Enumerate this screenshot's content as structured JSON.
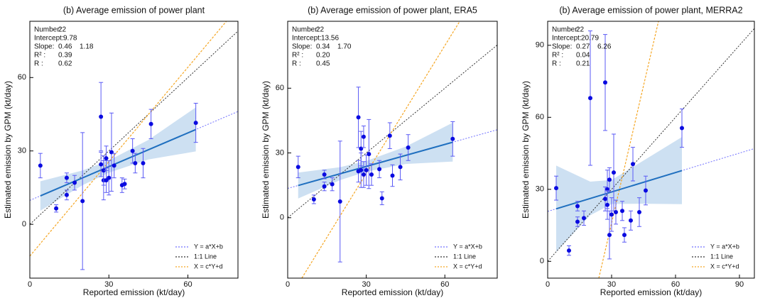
{
  "chart_data": [
    {
      "type": "scatter",
      "title": "(b) Average emission of power plant",
      "xlabel": "Reported emission (kt/day)",
      "ylabel": "Estimated emission by GPM (kt/day)",
      "xlim": [
        0,
        79
      ],
      "ylim": [
        -22,
        83
      ],
      "xticks": [
        0,
        30,
        60
      ],
      "yticks": [
        0,
        30,
        60
      ],
      "point_color": "#0a0ae0",
      "x": [
        4,
        10,
        14,
        14,
        17,
        20,
        27,
        27,
        28,
        28,
        29,
        29,
        30,
        31,
        32,
        35,
        36,
        39,
        40,
        43,
        46,
        63
      ],
      "values": [
        24,
        6.5,
        12,
        19,
        17,
        9.5,
        24.5,
        44,
        18,
        22,
        18,
        27,
        19,
        29.5,
        24,
        16,
        16.5,
        30,
        25,
        25,
        41,
        41.5
      ],
      "errors": [
        5,
        1.5,
        2,
        2,
        3,
        28,
        5,
        14,
        8,
        6,
        5,
        5,
        7,
        16,
        5,
        3,
        2,
        5,
        4,
        6,
        6,
        8
      ],
      "band_x": [
        4,
        20,
        30,
        45,
        63
      ],
      "band_lower": [
        5.6,
        16,
        21.1,
        26.5,
        29.8
      ],
      "band_upper": [
        17.6,
        22,
        26.1,
        34.5,
        47.8
      ],
      "stats": [
        {
          "label": "Number:",
          "value": 22
        },
        {
          "label": "Intercept:",
          "value": 9.78
        },
        {
          "label": "Slope:",
          "value": 0.46,
          "value2": 1.18
        },
        {
          "label": "R² :",
          "value": 0.39
        },
        {
          "label": "R :",
          "value": 0.62
        }
      ],
      "lines": [
        {
          "name": "Y = a*X+b",
          "color": "#7070ff"
        },
        {
          "name": "1:1 Line",
          "color": "#333333"
        },
        {
          "name": "X = c*Y+d",
          "color": "#f5a623",
          "x": [
            0,
            74.6
          ],
          "y": [
            -13,
            83
          ]
        }
      ]
    },
    {
      "type": "scatter",
      "title": "(b) Average emission of power plant, ERA5",
      "xlabel": "Reported emission (kt/day)",
      "ylabel": "Estimated emission by GPM (kt/day)",
      "xlim": [
        0,
        80
      ],
      "ylim": [
        -28,
        91
      ],
      "xticks": [
        0,
        30,
        60
      ],
      "yticks": [
        0,
        30,
        60
      ],
      "point_color": "#0a0ae0",
      "x": [
        4,
        10,
        14,
        14,
        17,
        20,
        27,
        27,
        28,
        28,
        29,
        29,
        30,
        31,
        32,
        35,
        36,
        39,
        40,
        43,
        46,
        63
      ],
      "values": [
        23.5,
        8.5,
        14.5,
        20,
        15.5,
        7.5,
        21.5,
        46.5,
        22,
        32,
        20,
        37.5,
        22,
        29.5,
        20,
        22.5,
        9,
        38,
        19.5,
        23.5,
        32.5,
        36.5
      ],
      "errors": [
        5,
        2,
        2,
        2,
        3,
        28,
        5,
        14,
        8,
        8,
        6,
        5,
        7,
        16,
        5,
        4,
        3,
        6,
        5,
        6,
        6,
        8
      ],
      "band_x": [
        4,
        20,
        30,
        45,
        63
      ],
      "band_lower": [
        8.9,
        17.4,
        21.3,
        24.9,
        26
      ],
      "band_upper": [
        20.9,
        23.4,
        26.3,
        32.9,
        44
      ],
      "stats": [
        {
          "label": "Number:",
          "value": 22
        },
        {
          "label": "Intercept:",
          "value": 13.56
        },
        {
          "label": "Slope:",
          "value": 0.34,
          "value2": {
            "value": 1.7,
            "label": "1.70"
          }
        },
        {
          "label": "R² :",
          "value": {
            "value": 0.2,
            "label": "0.20"
          }
        },
        {
          "label": "R :",
          "value": 0.45
        }
      ],
      "lines": [
        {
          "name": "Y = a*X+b",
          "color": "#7070ff"
        },
        {
          "name": "1:1 Line",
          "color": "#333333"
        },
        {
          "name": "X = c*Y+d",
          "color": "#f5a623",
          "x": [
            5.4,
            65.7
          ],
          "y": [
            -28,
            91
          ]
        }
      ]
    },
    {
      "type": "scatter",
      "title": "(b) Average emission of power plant, MERRA2",
      "xlabel": "Reported emission (kt/day)",
      "ylabel": "Estimated emission by GPM (kt/day)",
      "xlim": [
        0,
        97
      ],
      "ylim": [
        -7,
        100
      ],
      "xticks": [
        0,
        30,
        60,
        90
      ],
      "yticks": [
        0,
        30,
        60,
        90
      ],
      "point_color": "#0a0ae0",
      "x": [
        4,
        10,
        14,
        14,
        17,
        20,
        27,
        27,
        28,
        28,
        29,
        29,
        30,
        31,
        32,
        35,
        36,
        39,
        40,
        43,
        46,
        63
      ],
      "values": [
        30.5,
        4.5,
        16.5,
        23,
        18,
        68,
        26,
        74.5,
        30,
        23.5,
        11,
        34,
        19.5,
        37,
        20.5,
        21,
        11,
        17,
        40.5,
        20.5,
        29.5,
        55.5
      ],
      "errors": [
        5,
        2,
        2,
        2,
        3,
        28,
        5,
        20,
        8,
        6,
        10,
        5,
        7,
        16,
        5,
        4,
        3,
        4,
        7,
        6,
        6,
        8
      ],
      "band_x": [
        4,
        20,
        30,
        45,
        63
      ],
      "band_lower": [
        3.9,
        19.2,
        23.9,
        24,
        23.8
      ],
      "band_upper": [
        39.9,
        33.2,
        33.9,
        42,
        51.8
      ],
      "stats": [
        {
          "label": "Number:",
          "value": 22
        },
        {
          "label": "Intercept:",
          "value": 20.79
        },
        {
          "label": "Slope:",
          "value": 0.27,
          "value2": 6.26
        },
        {
          "label": "R² :",
          "value": 0.04
        },
        {
          "label": "R :",
          "value": 0.21
        }
      ],
      "lines": [
        {
          "name": "Y = a*X+b",
          "color": "#7070ff"
        },
        {
          "name": "1:1 Line",
          "color": "#333333"
        },
        {
          "name": "X = c*Y+d",
          "color": "#f5a623",
          "x": [
            24,
            52
          ],
          "y": [
            -7,
            100
          ]
        }
      ]
    }
  ]
}
